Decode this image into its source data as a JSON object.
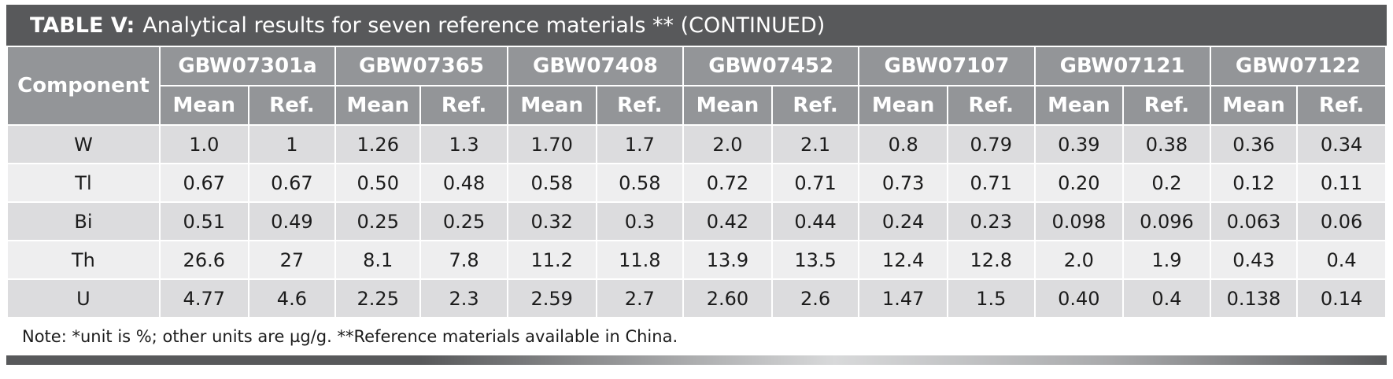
{
  "title": {
    "label": "TABLE V:",
    "text": "Analytical results for seven reference materials ** (CONTINUED)"
  },
  "table": {
    "component_header": "Component",
    "materials": [
      "GBW07301a",
      "GBW07365",
      "GBW07408",
      "GBW07452",
      "GBW07107",
      "GBW07121",
      "GBW07122"
    ],
    "subheaders": [
      "Mean",
      "Ref.",
      "Mean",
      "Ref.",
      "Mean",
      "Ref.",
      "Mean",
      "Ref.",
      "Mean",
      "Ref.",
      "Mean",
      "Ref.",
      "Mean",
      "Ref."
    ],
    "rows": [
      {
        "component": "W",
        "values": [
          "1.0",
          "1",
          "1.26",
          "1.3",
          "1.70",
          "1.7",
          "2.0",
          "2.1",
          "0.8",
          "0.79",
          "0.39",
          "0.38",
          "0.36",
          "0.34"
        ]
      },
      {
        "component": "Tl",
        "values": [
          "0.67",
          "0.67",
          "0.50",
          "0.48",
          "0.58",
          "0.58",
          "0.72",
          "0.71",
          "0.73",
          "0.71",
          "0.20",
          "0.2",
          "0.12",
          "0.11"
        ]
      },
      {
        "component": "Bi",
        "values": [
          "0.51",
          "0.49",
          "0.25",
          "0.25",
          "0.32",
          "0.3",
          "0.42",
          "0.44",
          "0.24",
          "0.23",
          "0.098",
          "0.096",
          "0.063",
          "0.06"
        ]
      },
      {
        "component": "Th",
        "values": [
          "26.6",
          "27",
          "8.1",
          "7.8",
          "11.2",
          "11.8",
          "13.9",
          "13.5",
          "12.4",
          "12.8",
          "2.0",
          "1.9",
          "0.43",
          "0.4"
        ]
      },
      {
        "component": "U",
        "values": [
          "4.77",
          "4.6",
          "2.25",
          "2.3",
          "2.59",
          "2.7",
          "2.60",
          "2.6",
          "1.47",
          "1.5",
          "0.40",
          "0.4",
          "0.138",
          "0.14"
        ]
      }
    ]
  },
  "note": "Note: *unit is %; other units are µg/g. **Reference materials available in China.",
  "colors": {
    "title_bar": "#58595b",
    "header": "#939598",
    "row_dark": "#dcdcde",
    "row_light": "#eeeeef"
  }
}
